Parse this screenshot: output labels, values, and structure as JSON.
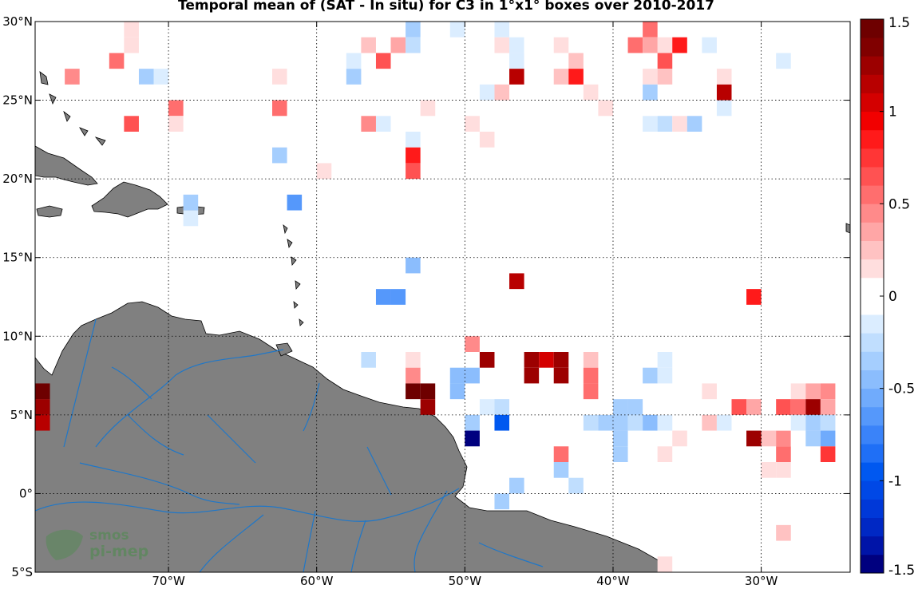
{
  "title": "Temporal mean of (SAT - In situ) for C3 in 1°x1° boxes over 2010-2017",
  "map": {
    "lon_range": [
      -79,
      -24
    ],
    "lat_range": [
      -5,
      30
    ],
    "lon_ticks": [
      {
        "value": -70,
        "label": "70°W"
      },
      {
        "value": -60,
        "label": "60°W"
      },
      {
        "value": -50,
        "label": "50°W"
      },
      {
        "value": -40,
        "label": "40°W"
      },
      {
        "value": -30,
        "label": "30°W"
      }
    ],
    "lat_ticks": [
      {
        "value": 30,
        "label": "30°N"
      },
      {
        "value": 25,
        "label": "25°N"
      },
      {
        "value": 20,
        "label": "20°N"
      },
      {
        "value": 15,
        "label": "15°N"
      },
      {
        "value": 10,
        "label": "10°N"
      },
      {
        "value": 5,
        "label": "5°N"
      },
      {
        "value": 0,
        "label": "0°"
      },
      {
        "value": -5,
        "label": "5°S"
      }
    ],
    "land_color": "#808080",
    "river_color": "#1f77c8",
    "grid": "dotted"
  },
  "colorbar": {
    "range": [
      -1.5,
      1.5
    ],
    "ticks": [
      {
        "value": 1.5,
        "label": "1.5"
      },
      {
        "value": 1,
        "label": "1"
      },
      {
        "value": 0.5,
        "label": "0.5"
      },
      {
        "value": 0,
        "label": "0"
      },
      {
        "value": -0.5,
        "label": "-0.5"
      },
      {
        "value": -1,
        "label": "-1"
      },
      {
        "value": -1.5,
        "label": "-1.5"
      }
    ],
    "colors_negative_to_positive": [
      "#00007f",
      "#0014a8",
      "#0028c4",
      "#0038d8",
      "#0048e6",
      "#0058f0",
      "#1f6ff6",
      "#3a83f9",
      "#5598fb",
      "#70abfc",
      "#8bbdfd",
      "#a5cefe",
      "#c0defe",
      "#dbedff",
      "#ffffff",
      "#ffffff",
      "#ffdede",
      "#ffc2c2",
      "#ffa6a6",
      "#ff8a8a",
      "#ff6e6e",
      "#ff5252",
      "#ff3636",
      "#ff1a1a",
      "#f20000",
      "#d40000",
      "#b80000",
      "#9c0000",
      "#800000",
      "#6e0000"
    ]
  },
  "logo": {
    "line1": "smos",
    "line2": "pi-mep"
  },
  "chart_data": {
    "type": "heatmap",
    "title": "Temporal mean of (SAT - In situ) for C3 in 1°x1° boxes over 2010-2017",
    "cell_size_deg": 1,
    "value_range": [
      -1.5,
      1.5
    ],
    "cells": [
      [
        -73,
        29,
        0.1
      ],
      [
        -73,
        28,
        0.1
      ],
      [
        -74,
        27,
        0.5
      ],
      [
        -77,
        26,
        0.4
      ],
      [
        -72,
        26,
        -0.4
      ],
      [
        -71,
        26,
        -0.1
      ],
      [
        -72,
        25,
        -0.05
      ],
      [
        -70,
        24,
        0.5
      ],
      [
        -70,
        23,
        0.15
      ],
      [
        -73,
        23,
        0.6
      ],
      [
        -63,
        26,
        0.1
      ],
      [
        -63,
        24,
        0.5
      ],
      [
        -63,
        21,
        -0.4
      ],
      [
        -60,
        20,
        0.15
      ],
      [
        -69,
        18,
        -0.4
      ],
      [
        -69,
        17,
        -0.1
      ],
      [
        -62,
        18,
        -0.7
      ],
      [
        -54,
        29,
        -0.3
      ],
      [
        -51,
        29,
        -0.1
      ],
      [
        -55,
        28,
        0.35
      ],
      [
        -54,
        28,
        -0.25
      ],
      [
        -57,
        28,
        0.25
      ],
      [
        -58,
        27,
        -0.1
      ],
      [
        -56,
        27,
        0.6
      ],
      [
        -51,
        27,
        -0.05
      ],
      [
        -58,
        26,
        -0.35
      ],
      [
        -53,
        24,
        0.15
      ],
      [
        -56,
        23,
        -0.2
      ],
      [
        -57,
        23,
        0.4
      ],
      [
        -54,
        22,
        -0.2
      ],
      [
        -54,
        21,
        0.9
      ],
      [
        -54,
        20,
        0.6
      ],
      [
        -48,
        29,
        -0.1
      ],
      [
        -48,
        28,
        0.1
      ],
      [
        -47,
        28,
        -0.2
      ],
      [
        -46,
        28,
        -0.05
      ],
      [
        -44,
        28,
        0.1
      ],
      [
        -47,
        27,
        -0.2
      ],
      [
        -45,
        27,
        -0.05
      ],
      [
        -44,
        27,
        -0.05
      ],
      [
        -43,
        27,
        0.2
      ],
      [
        -47,
        26,
        1.1
      ],
      [
        -44,
        26,
        0.2
      ],
      [
        -43,
        26,
        0.9
      ],
      [
        -49,
        25,
        -0.1
      ],
      [
        -48,
        25,
        0.2
      ],
      [
        -46,
        25,
        -0.05
      ],
      [
        -46,
        24,
        -0.05
      ],
      [
        -42,
        25,
        0.15
      ],
      [
        -41,
        24,
        0.1
      ],
      [
        -50,
        23,
        0.1
      ],
      [
        -49,
        22,
        0.15
      ],
      [
        -38,
        29,
        0.5
      ],
      [
        -37,
        28,
        0.1
      ],
      [
        -36,
        28,
        0.9
      ],
      [
        -34,
        28,
        -0.1
      ],
      [
        -39,
        28,
        0.55
      ],
      [
        -38,
        28,
        0.3
      ],
      [
        -37,
        27,
        0.6
      ],
      [
        -38,
        26,
        0.15
      ],
      [
        -37,
        26,
        0.2
      ],
      [
        -29,
        27,
        -0.1
      ],
      [
        -38,
        25,
        -0.3
      ],
      [
        -36,
        25,
        -0.05
      ],
      [
        -35,
        25,
        -0.05
      ],
      [
        -34,
        25,
        -0.05
      ],
      [
        -33,
        26,
        0.15
      ],
      [
        -33,
        25,
        1.1
      ],
      [
        -33,
        24,
        -0.2
      ],
      [
        -38,
        23,
        -0.1
      ],
      [
        -37,
        23,
        -0.25
      ],
      [
        -36,
        23,
        0.15
      ],
      [
        -35,
        23,
        -0.3
      ],
      [
        -39,
        22,
        -0.05
      ],
      [
        -54,
        14,
        -0.45
      ],
      [
        -56,
        12,
        -0.7
      ],
      [
        -55,
        12,
        -0.7
      ],
      [
        -47,
        13,
        1.1
      ],
      [
        -31,
        12,
        0.8
      ],
      [
        -50,
        9,
        0.4
      ],
      [
        -49,
        8,
        1.2
      ],
      [
        -48,
        7,
        -0.05
      ],
      [
        -46,
        8,
        1.3
      ],
      [
        -45,
        8,
        1.0
      ],
      [
        -44,
        8,
        1.3
      ],
      [
        -46,
        7,
        1.3
      ],
      [
        -44,
        7,
        1.3
      ],
      [
        -42,
        8,
        0.2
      ],
      [
        -42,
        7,
        0.5
      ],
      [
        -42,
        6,
        0.5
      ],
      [
        -37,
        8,
        -0.1
      ],
      [
        -38,
        7,
        -0.35
      ],
      [
        -37,
        7,
        -0.1
      ],
      [
        -57,
        8,
        -0.25
      ],
      [
        -54,
        8,
        0.15
      ],
      [
        -54,
        7,
        0.4
      ],
      [
        -51,
        7,
        -0.5
      ],
      [
        -50,
        7,
        -0.45
      ],
      [
        -51,
        6,
        -0.45
      ],
      [
        -54,
        6,
        1.4
      ],
      [
        -53,
        6,
        1.4
      ],
      [
        -53,
        5,
        1.3
      ],
      [
        -49,
        5,
        -0.2
      ],
      [
        -48,
        5,
        -0.25
      ],
      [
        -50,
        4,
        -0.3
      ],
      [
        -48,
        4,
        -0.9
      ],
      [
        -50,
        3,
        -1.5
      ],
      [
        -47,
        0,
        -0.35
      ],
      [
        -44,
        2,
        0.5
      ],
      [
        -44,
        1,
        -0.35
      ],
      [
        -43,
        0,
        -0.25
      ],
      [
        -40,
        5,
        -0.35
      ],
      [
        -39,
        5,
        -0.35
      ],
      [
        -42,
        4,
        -0.25
      ],
      [
        -41,
        4,
        -0.35
      ],
      [
        -40,
        4,
        -0.35
      ],
      [
        -39,
        4,
        -0.25
      ],
      [
        -38,
        4,
        -0.5
      ],
      [
        -37,
        4,
        -0.15
      ],
      [
        -40,
        3,
        -0.4
      ],
      [
        -40,
        2,
        -0.4
      ],
      [
        -36,
        3,
        0.15
      ],
      [
        -34,
        4,
        0.2
      ],
      [
        -33,
        4,
        -0.2
      ],
      [
        -34,
        6,
        0.15
      ],
      [
        -32,
        5,
        0.6
      ],
      [
        -31,
        5,
        0.35
      ],
      [
        -31,
        3,
        1.2
      ],
      [
        -30,
        3,
        0.2
      ],
      [
        -29,
        3,
        0.4
      ],
      [
        -29,
        2,
        0.5
      ],
      [
        -30,
        1,
        0.15
      ],
      [
        -29,
        1,
        0.15
      ],
      [
        -29,
        4,
        -0.05
      ],
      [
        -28,
        6,
        0.1
      ],
      [
        -27,
        6,
        0.3
      ],
      [
        -26,
        6,
        0.4
      ],
      [
        -29,
        5,
        0.6
      ],
      [
        -28,
        5,
        0.5
      ],
      [
        -27,
        5,
        1.3
      ],
      [
        -26,
        5,
        0.3
      ],
      [
        -28,
        4,
        -0.2
      ],
      [
        -27,
        4,
        -0.3
      ],
      [
        -26,
        4,
        -0.25
      ],
      [
        -28,
        3,
        -0.05
      ],
      [
        -27,
        3,
        -0.35
      ],
      [
        -26,
        3,
        -0.55
      ],
      [
        -26,
        2,
        0.7
      ],
      [
        -37,
        2,
        0.15
      ],
      [
        -29,
        -3,
        0.2
      ],
      [
        -37,
        -5,
        0.15
      ],
      [
        -48,
        -1,
        -0.3
      ],
      [
        -79,
        6,
        1.4
      ],
      [
        -79,
        5,
        1.3
      ],
      [
        -79,
        4,
        1.1
      ]
    ]
  }
}
